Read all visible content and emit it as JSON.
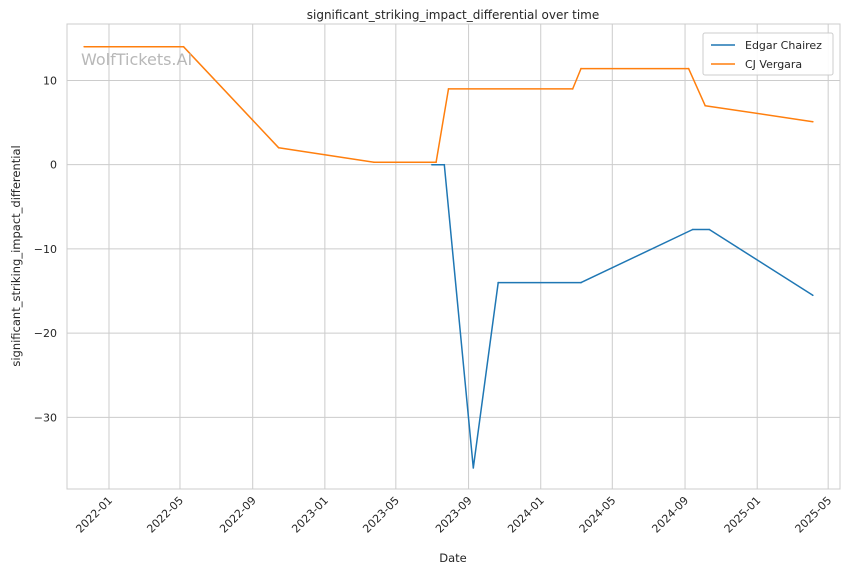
{
  "chart_data": {
    "type": "line",
    "title": "significant_striking_impact_differential over time",
    "xlabel": "Date",
    "ylabel": "significant_striking_impact_differential",
    "xlim": [
      "2021-10-22",
      "2025-05-21"
    ],
    "ylim": [
      -38.5,
      16.7
    ],
    "x_ticks": [
      "2022-01",
      "2022-05",
      "2022-09",
      "2023-01",
      "2023-05",
      "2023-09",
      "2024-01",
      "2024-05",
      "2024-09",
      "2025-01",
      "2025-05"
    ],
    "y_ticks": [
      -30,
      -20,
      -10,
      0,
      10
    ],
    "grid": true,
    "legend_position": "top-right",
    "watermark": "WolfTickets.AI",
    "series": [
      {
        "name": "Edgar Chairez",
        "color": "#1f77b4",
        "points": [
          [
            "2023-07-01",
            0
          ],
          [
            "2023-07-22",
            0
          ],
          [
            "2023-09-09",
            -36
          ],
          [
            "2023-10-21",
            -14
          ],
          [
            "2024-03-09",
            -14
          ],
          [
            "2024-09-14",
            -7.7
          ],
          [
            "2024-10-12",
            -7.7
          ],
          [
            "2025-04-05",
            -15.5
          ]
        ]
      },
      {
        "name": "CJ Vergara",
        "color": "#ff7f0e",
        "points": [
          [
            "2021-11-20",
            14
          ],
          [
            "2022-05-07",
            14
          ],
          [
            "2022-10-15",
            2
          ],
          [
            "2023-03-25",
            0.3
          ],
          [
            "2023-07-08",
            0.3
          ],
          [
            "2023-07-29",
            9
          ],
          [
            "2024-02-24",
            9
          ],
          [
            "2024-03-09",
            11.4
          ],
          [
            "2024-09-07",
            11.4
          ],
          [
            "2024-10-05",
            7
          ],
          [
            "2025-04-05",
            5.1
          ]
        ]
      }
    ]
  }
}
